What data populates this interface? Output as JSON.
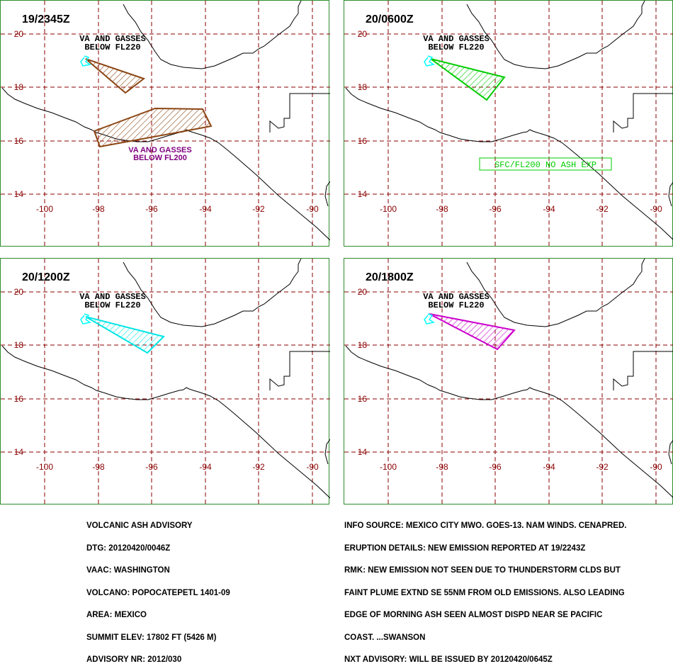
{
  "axes": {
    "x_ticks": [
      "-100",
      "-98",
      "-96",
      "-94",
      "-92",
      "-90"
    ],
    "y_ticks": [
      "14",
      "16",
      "18",
      "20"
    ]
  },
  "colors": {
    "gridline": "#8b0000",
    "coast": "#000000",
    "volcano": "#00ffff",
    "panel_border": "#2e8b2e",
    "panel0": "#8b4513",
    "panel1": "#00cc00",
    "panel2": "#00e5e5",
    "panel3": "#cc00cc",
    "panel0_label2": "#800080",
    "panel1_label2": "#00cc00"
  },
  "panels": [
    {
      "time": "19/2345Z",
      "label1_line1": "VA AND GASSES",
      "label1_line2": "BELOW FL220",
      "label2_line1": "VA AND GASSES",
      "label2_line2": "BELOW FL200"
    },
    {
      "time": "20/0600Z",
      "label1_line1": "VA AND GASSES",
      "label1_line2": "BELOW FL220",
      "label2_line1": "SFC/FL200 NO ASH EXP",
      "label2_line2": ""
    },
    {
      "time": "20/1200Z",
      "label1_line1": "VA AND GASSES",
      "label1_line2": "BELOW FL220",
      "label2_line1": "",
      "label2_line2": ""
    },
    {
      "time": "20/1800Z",
      "label1_line1": "VA AND GASSES",
      "label1_line2": "BELOW FL220",
      "label2_line1": "",
      "label2_line2": ""
    }
  ],
  "footer_left": [
    "VOLCANIC ASH ADVISORY",
    "DTG: 20120420/0046Z",
    "VAAC: WASHINGTON",
    "VOLCANO: POPOCATEPETL 1401-09",
    "AREA: MEXICO",
    "SUMMIT ELEV: 17802 FT (5426 M)",
    "ADVISORY NR: 2012/030"
  ],
  "footer_right": [
    "INFO SOURCE: MEXICO CITY MWO. GOES-13. NAM WINDS. CENAPRED.",
    "ERUPTION DETAILS: NEW EMISSION REPORTED AT 19/2243Z",
    "RMK: NEW EMISSION NOT SEEN DUE TO THUNDERSTORM CLDS BUT",
    "FAINT PLUME EXTND SE 55NM FROM OLD EMISSIONS. ALSO LEADING",
    "EDGE OF MORNING ASH SEEN ALMOST DISPD NEAR SE PACIFIC",
    "COAST. ...SWANSON",
    "NXT ADVISORY: WILL BE ISSUED BY 20120420/0645Z"
  ]
}
